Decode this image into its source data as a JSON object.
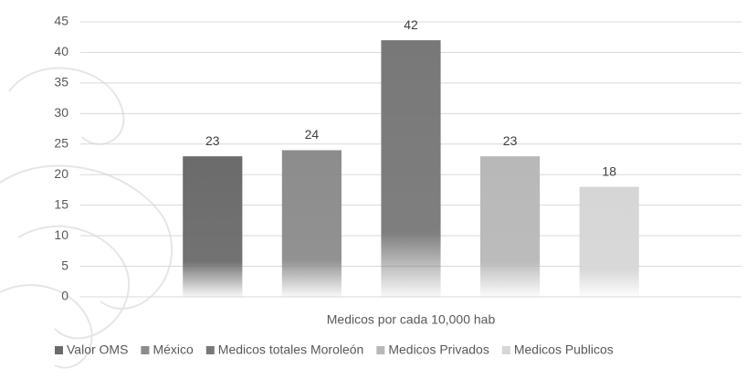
{
  "chart_data": {
    "type": "bar",
    "categories": [
      "Medicos por cada 10,000 hab"
    ],
    "series": [
      {
        "name": "Valor OMS",
        "color": "#6b6b6b",
        "values": [
          23
        ]
      },
      {
        "name": "México",
        "color": "#8c8c8c",
        "values": [
          24
        ]
      },
      {
        "name": "Medicos totales Moroleón",
        "color": "#787878",
        "values": [
          42
        ]
      },
      {
        "name": "Medicos Privados",
        "color": "#b8b8b8",
        "values": [
          23
        ]
      },
      {
        "name": "Medicos Publicos",
        "color": "#d6d6d6",
        "values": [
          18
        ]
      }
    ],
    "ylim": [
      0,
      45
    ],
    "yticks": [
      0,
      5,
      10,
      15,
      20,
      25,
      30,
      35,
      40,
      45
    ],
    "grid": true,
    "data_labels": true,
    "legend": "bottom"
  }
}
